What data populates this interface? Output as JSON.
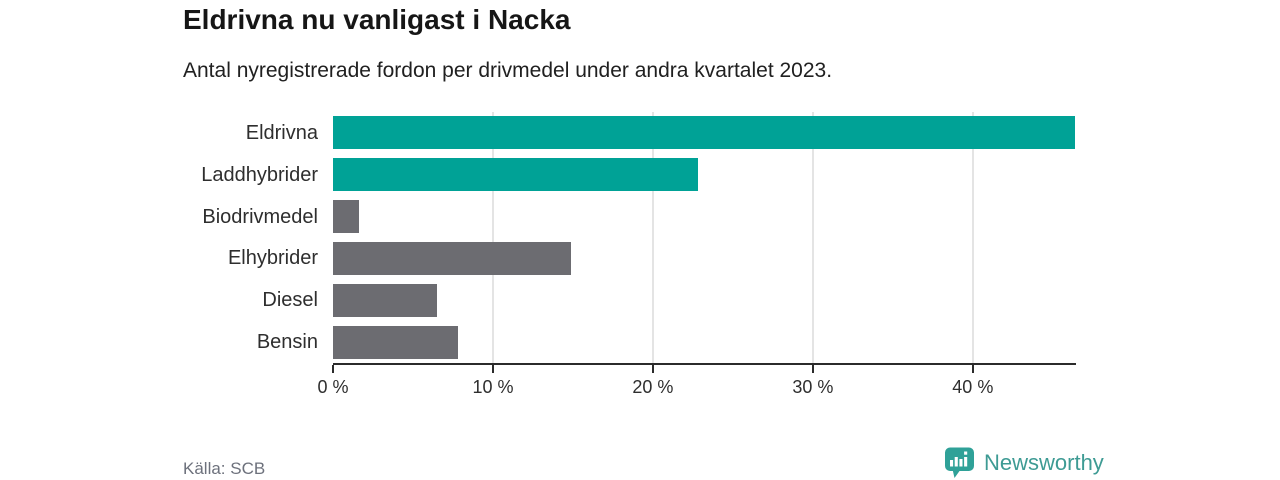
{
  "header": {
    "title": "Eldrivna nu vanligast i Nacka",
    "subtitle": "Antal nyregistrerade fordon per drivmedel under andra kvartalet 2023."
  },
  "chart_data": {
    "type": "bar",
    "orientation": "horizontal",
    "title": "Eldrivna nu vanligast i Nacka",
    "subtitle": "Antal nyregistrerade fordon per drivmedel under andra kvartalet 2023.",
    "categories": [
      "Eldrivna",
      "Laddhybrider",
      "Biodrivmedel",
      "Elhybrider",
      "Diesel",
      "Bensin"
    ],
    "values": [
      46.4,
      22.8,
      1.6,
      14.9,
      6.5,
      7.8
    ],
    "unit": "%",
    "bar_colors": [
      "#00a296",
      "#00a296",
      "#6c6c71",
      "#6c6c71",
      "#6c6c71",
      "#6c6c71"
    ],
    "xlabel": "",
    "ylabel": "",
    "xlim": [
      0,
      46.45
    ],
    "x_tick_values": [
      0,
      10,
      20,
      30,
      40
    ],
    "x_tick_labels": [
      "0 %",
      "10 %",
      "20 %",
      "30 %",
      "40 %"
    ],
    "grid": "vertical",
    "legend": "none"
  },
  "footer": {
    "source": "Källa: SCB",
    "brand": {
      "name": "Newsworthy",
      "color": "#3e9b94",
      "icon_color": "#2fa198"
    }
  }
}
